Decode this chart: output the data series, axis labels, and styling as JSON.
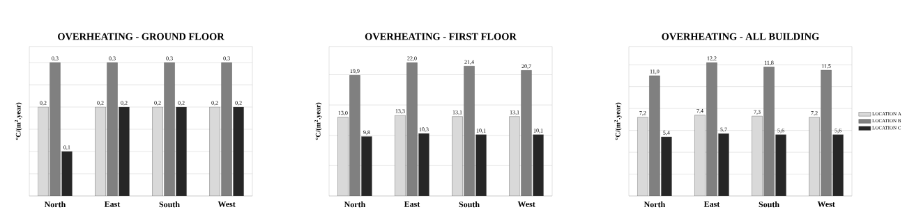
{
  "chart_data": [
    {
      "type": "bar",
      "title": "OVERHEATING - GROUND FLOOR",
      "ylabel": "°C/(m$^{2}$.year)",
      "categories": [
        "North",
        "East",
        "South",
        "West"
      ],
      "series": [
        {
          "color": "#d9d9d9",
          "values": [
            0.2,
            0.2,
            0.2,
            0.2
          ],
          "value_labels": [
            "0,2",
            "0,2",
            "0,2",
            "0,2"
          ]
        },
        {
          "color": "#808080",
          "values": [
            0.3,
            0.3,
            0.3,
            0.3
          ],
          "value_labels": [
            "0,3",
            "0,3",
            "0,3",
            "0,3"
          ]
        },
        {
          "color": "#262626",
          "values": [
            0.1,
            0.2,
            0.2,
            0.2
          ],
          "value_labels": [
            "0,1",
            "0,2",
            "0,2",
            "0,2"
          ]
        }
      ],
      "grid": "y",
      "tick_labels": "x"
    },
    {
      "type": "bar",
      "title": "OVERHEATING - FIRST FLOOR",
      "ylabel": "°C/(m$^{2}$.year)",
      "categories": [
        "North",
        "East",
        "South",
        "West"
      ],
      "series": [
        {
          "color": "#d9d9d9",
          "values": [
            13.0,
            13.3,
            13.1,
            13.1
          ],
          "value_labels": [
            "13,0",
            "13,3",
            "13,1",
            "13,1"
          ]
        },
        {
          "color": "#808080",
          "values": [
            19.9,
            22.0,
            21.4,
            20.7
          ],
          "value_labels": [
            "19,9",
            "22,0",
            "21,4",
            "20,7"
          ]
        },
        {
          "color": "#262626",
          "values": [
            9.8,
            10.3,
            10.1,
            10.1
          ],
          "value_labels": [
            "9,8",
            "10,3",
            "10,1",
            "10,1"
          ]
        }
      ],
      "grid": "y",
      "tick_labels": "x"
    },
    {
      "type": "bar",
      "title": "OVERHEATING - ALL BUILDING",
      "ylabel": "°C/(m$^{2}$.year)",
      "categories": [
        "North",
        "East",
        "South",
        "West"
      ],
      "series": [
        {
          "name": "LOCATION A",
          "color": "#d9d9d9",
          "values": [
            7.2,
            7.4,
            7.3,
            7.2
          ],
          "value_labels": [
            "7,2",
            "7,4",
            "7,3",
            "7,2"
          ]
        },
        {
          "name": "LOCATION B",
          "color": "#808080",
          "values": [
            11.0,
            12.2,
            11.8,
            11.5
          ],
          "value_labels": [
            "11,0",
            "12,2",
            "11,8",
            "11,5"
          ]
        },
        {
          "name": "LOCATION C",
          "color": "#262626",
          "values": [
            5.4,
            5.7,
            5.6,
            5.6
          ],
          "value_labels": [
            "5,4",
            "5,7",
            "5,6",
            "5,6"
          ]
        }
      ],
      "grid": "y",
      "tick_labels": "x",
      "legend": "right"
    }
  ]
}
